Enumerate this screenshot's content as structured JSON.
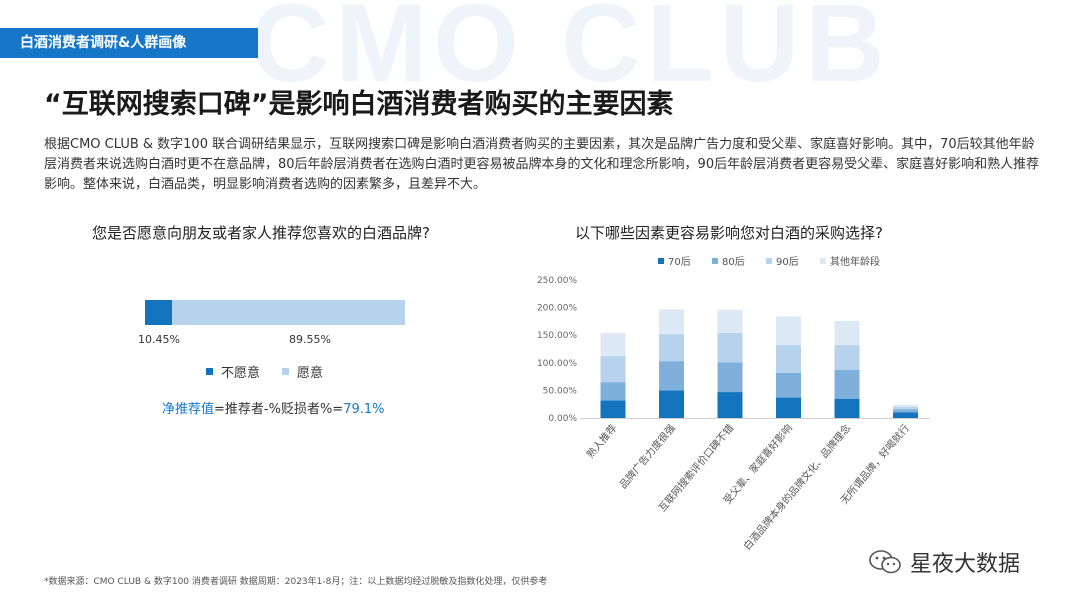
{
  "watermark": "CMO CLUB",
  "section_tab": "白酒消费者调研&人群画像",
  "headline": "“互联网搜索口碑”是影响白酒消费者购买的主要因素",
  "intro": "根据CMO CLUB & 数字100 联合调研结果显示，互联网搜索口碑是影响白酒消费者购买的主要因素，其次是品牌广告力度和受父辈、家庭喜好影响。其中，70后较其他年龄层消费者来说选购白酒时更不在意品牌，80后年龄层消费者在选购白酒时更容易被品牌本身的文化和理念所影响，90后年龄层消费者更容易受父辈、家庭喜好影响和熟人推荐影响。整体来说，白酒品类，明显影响消费者选购的因素繁多，且差异不大。",
  "left_chart": {
    "title": "您是否愿意向朋友或者家人推荐您喜欢的白酒品牌?",
    "formula_label": "净推荐值",
    "formula_rest": "=推荐者-%贬损者%=",
    "formula_value": "79.1%"
  },
  "right_chart": {
    "title": "以下哪些因素更容易影响您对白酒的采购选择?"
  },
  "footnote": "*数据来源：CMO CLUB & 数字100 消费者调研    数据周期：2023年1-8月；注：以上数据均经过脱敏及指数化处理，仅供参考",
  "wechat_name": "星夜大数据",
  "colors": {
    "blue_dark": "#1473bd",
    "blue_mid": "#7fb0dc",
    "blue_light": "#b7d2ec",
    "blue_pale": "#dde9f5",
    "accent": "#1677c8"
  },
  "chart_data": [
    {
      "type": "bar",
      "orientation": "horizontal-stacked",
      "categories": [
        "不愿意",
        "愿意"
      ],
      "values": [
        10.45,
        89.55
      ],
      "value_labels": [
        "10.45%",
        "89.55%"
      ],
      "unit": "%"
    },
    {
      "type": "bar",
      "orientation": "vertical-stacked",
      "categories": [
        "熟人推荐",
        "品牌广告力度很强",
        "互联网搜索评价口碑不错",
        "受父辈、家庭喜好影响",
        "白酒品牌本身的品牌文化、品牌理念",
        "无所谓品牌，好喝就行"
      ],
      "series": [
        {
          "name": "70后",
          "values": [
            32,
            50,
            47,
            37,
            35,
            10
          ]
        },
        {
          "name": "80后",
          "values": [
            33,
            53,
            54,
            45,
            52,
            6
          ]
        },
        {
          "name": "90后",
          "values": [
            47,
            49,
            53,
            50,
            45,
            4
          ]
        },
        {
          "name": "其他年龄段",
          "values": [
            42,
            45,
            42,
            52,
            44,
            4
          ]
        }
      ],
      "ylim": [
        0,
        250
      ],
      "ytick_labels": [
        "0.00%",
        "50.00%",
        "100.00%",
        "150.00%",
        "200.00%",
        "250.00%"
      ],
      "ylabel": "",
      "xlabel": "",
      "legend_position": "top",
      "grid": false
    }
  ]
}
